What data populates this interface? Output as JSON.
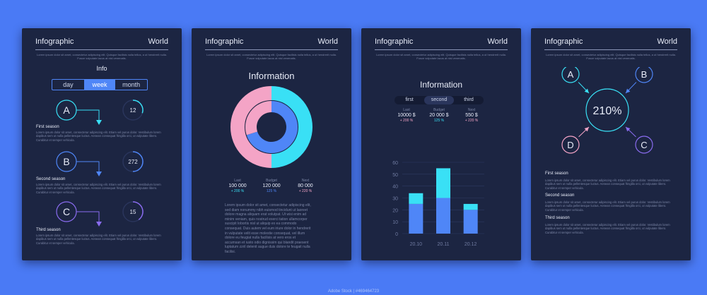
{
  "watermark": "Adobe Stock | #469464723",
  "common": {
    "title": "Infographic",
    "region": "World",
    "lorem_short": "Lorem ipsum dolor sit amet, consectetur adipiscing elit. Quisque facilisis nulla tellus, a ut hendrerit nulla. Fusce vulputate lacus at nisl venenatis.",
    "lorem_season": "Lorem ipsum dolor sit amet, consectetur adipiscing elit. Etiam vel purus dolor. Vestibulum lorem dapibus sem ut nulla pellentesque luctus. Aenean consequat fringilla orci, ut vulputate libero. Curabitur et semper vehicula."
  },
  "card1": {
    "heading": "Info",
    "tabs": [
      {
        "label": "day",
        "active": false
      },
      {
        "label": "week",
        "active": true
      },
      {
        "label": "month",
        "active": false
      }
    ],
    "seasons": [
      {
        "letter": "A",
        "name": "First season",
        "value": "12",
        "progress": 0.3,
        "color": "#39e0f5"
      },
      {
        "letter": "B",
        "name": "Second season",
        "value": "272",
        "progress": 0.5,
        "color": "#4f86f7"
      },
      {
        "letter": "C",
        "name": "Third season",
        "value": "15",
        "progress": 0.4,
        "color": "#8a6cf0"
      }
    ]
  },
  "card2": {
    "heading": "Information",
    "stats": [
      {
        "label": "Last",
        "value": "100 000",
        "change": "+ 200 %",
        "color": "#39e0f5"
      },
      {
        "label": "Budget",
        "value": "120 000",
        "change": "125 %",
        "color": "#4f86f7"
      },
      {
        "label": "Next",
        "value": "80 000",
        "change": "+ 220 %",
        "color": "#f4a4c6"
      }
    ],
    "paragraph": "Lorem ipsum dolor sit amet, consectetur adipiscing elit, sed diam nonummy nibh euismod tincidunt ut laoreet dolore magna aliquam erat volutpat. Ut wisi enim ad minim veniam, quis nostrud exerci tation ullamcorper suscipit lobortis nisl ut aliquip ex ea commodo consequat. Duis autem vel eum iriure dolor in hendrerit in vulputate velit esse molestie consequat, vel illum dolore eu feugiat nulla facilisis at vero eros et accumsan et iusto odio dignissim qui blandit praesent luptatum zzril delenit augue duis dolore te feugait nulla facilisi."
  },
  "card3": {
    "heading": "Information",
    "tabs": [
      {
        "label": "first",
        "active": false
      },
      {
        "label": "second",
        "active": true
      },
      {
        "label": "third",
        "active": false
      }
    ],
    "stats": [
      {
        "label": "Last",
        "value": "10000 $",
        "change": "+ 200 %",
        "color": "#f4a4c6"
      },
      {
        "label": "Budget",
        "value": "20 000 $",
        "change": "125 %",
        "color": "#39e0f5"
      },
      {
        "label": "Next",
        "value": "550 $",
        "change": "+ 220 %",
        "color": "#f4a4c6"
      }
    ]
  },
  "card4": {
    "center": "210%",
    "nodes": [
      {
        "letter": "A",
        "color": "#39e0f5"
      },
      {
        "letter": "B",
        "color": "#4f86f7"
      },
      {
        "letter": "C",
        "color": "#8a6cf0"
      },
      {
        "letter": "D",
        "color": "#f4a4c6"
      }
    ],
    "seasons": [
      "First season",
      "Second season",
      "Third season"
    ]
  },
  "chart_data": [
    {
      "type": "pie",
      "title": "Information",
      "series": [
        {
          "name": "outer",
          "values": [
            50,
            50
          ],
          "colors": [
            "#39e0f5",
            "#f4a4c6"
          ]
        },
        {
          "name": "inner",
          "values": [
            70,
            30
          ],
          "colors": [
            "#4f86f7",
            "#f4a4c6"
          ]
        }
      ]
    },
    {
      "type": "bar",
      "title": "Information",
      "categories": [
        "20.10",
        "20.11",
        "20.12"
      ],
      "series": [
        {
          "name": "base",
          "values": [
            25,
            30,
            20
          ],
          "color": "#4f86f7"
        },
        {
          "name": "top",
          "values": [
            9,
            25,
            5
          ],
          "color": "#39e0f5"
        }
      ],
      "yticks": [
        0,
        10,
        20,
        30,
        40,
        50,
        60
      ],
      "ylim": [
        0,
        60
      ],
      "grid": true
    }
  ]
}
